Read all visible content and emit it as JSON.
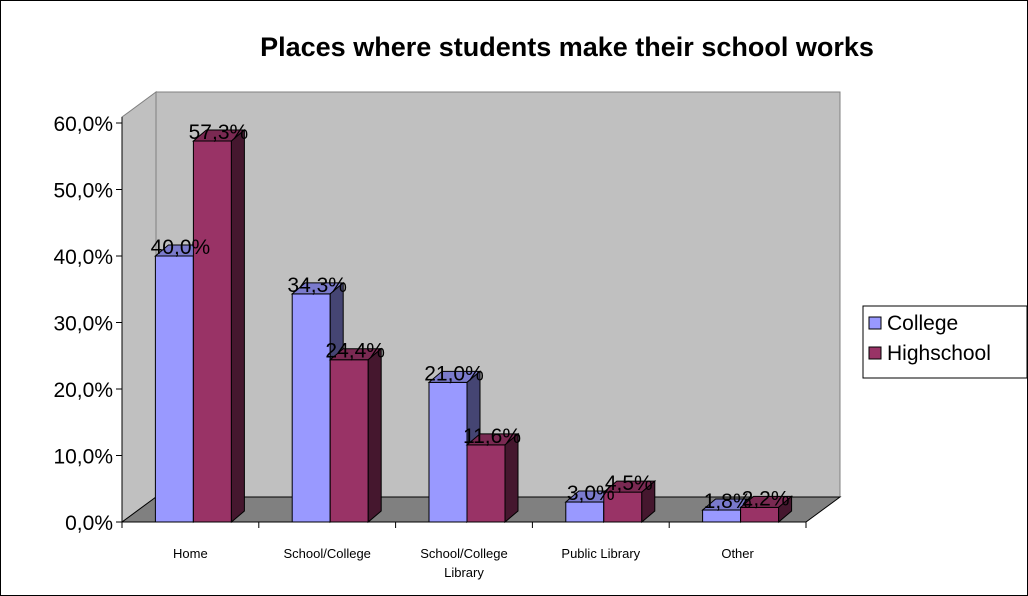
{
  "chart_data": {
    "type": "bar",
    "title": "Places where students make their school works",
    "categories": [
      "Home",
      "School/College",
      "School/College Library",
      "Public Library",
      "Other"
    ],
    "category_lines": [
      [
        "Home"
      ],
      [
        "School/College"
      ],
      [
        "School/College",
        "Library"
      ],
      [
        "Public Library"
      ],
      [
        "Other"
      ]
    ],
    "series": [
      {
        "name": "College",
        "values": [
          40.0,
          34.3,
          21.0,
          3.0,
          1.8
        ],
        "color": "#9999ff",
        "labels": [
          "40,0%",
          "34,3%",
          "21,0%",
          "3,0%",
          "1,8%"
        ]
      },
      {
        "name": "Highschool",
        "values": [
          57.3,
          24.4,
          11.6,
          4.5,
          2.2
        ],
        "color": "#993366",
        "labels": [
          "57,3%",
          "24,4%",
          "11,6%",
          "4,5%",
          "2,2%"
        ]
      }
    ],
    "ylim": [
      0,
      60
    ],
    "yticks": [
      0,
      10,
      20,
      30,
      40,
      50,
      60
    ],
    "ytick_labels": [
      "0,0%",
      "10,0%",
      "20,0%",
      "30,0%",
      "40,0%",
      "50,0%",
      "60,0%"
    ],
    "xlabel": "",
    "ylabel": "",
    "legend_position": "right",
    "style": "3d-clustered-column",
    "wall_color": "#c0c0c0",
    "floor_color": "#808080"
  }
}
